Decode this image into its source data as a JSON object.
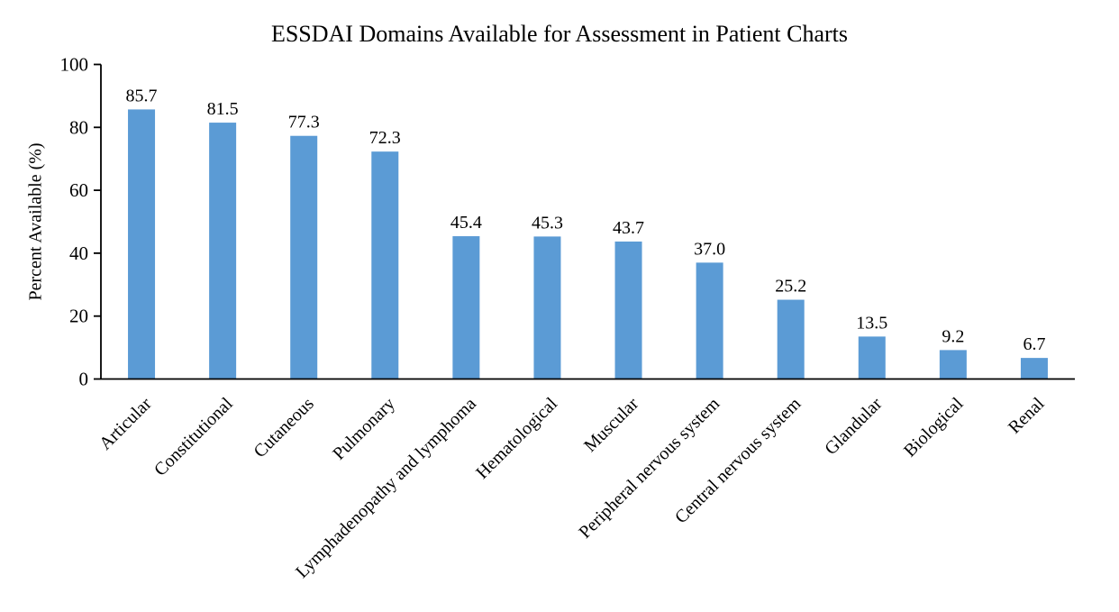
{
  "chart_data": {
    "type": "bar",
    "title": "ESSDAI Domains Available for Assessment in Patient Charts",
    "categories": [
      "Articular",
      "Constitutional",
      "Cutaneous",
      "Pulmonary",
      "Lymphadenopathy and lymphoma",
      "Hematological",
      "Muscular",
      "Peripheral nervous system",
      "Central nervous system",
      "Glandular",
      "Biological",
      "Renal"
    ],
    "values": [
      85.7,
      81.5,
      77.3,
      72.3,
      45.4,
      45.3,
      43.7,
      37.0,
      25.2,
      13.5,
      9.2,
      6.7
    ],
    "value_labels": [
      "85.7",
      "81.5",
      "77.3",
      "72.3",
      "45.4",
      "45.3",
      "43.7",
      "37.0",
      "25.2",
      "13.5",
      "9.2",
      "6.7"
    ],
    "xlabel": "",
    "ylabel": "Percent Available (%)",
    "ylim": [
      0,
      100
    ],
    "yticks": [
      0,
      20,
      40,
      60,
      80,
      100
    ],
    "bar_color": "#5B9BD5",
    "axis_color": "#000000",
    "text_color": "#000000",
    "grid": false,
    "legend": "none",
    "category_label_rotation_deg": 45,
    "value_labels_shown": true
  }
}
